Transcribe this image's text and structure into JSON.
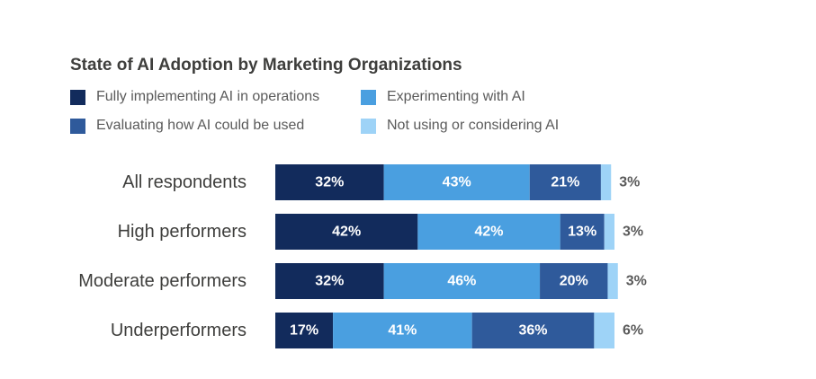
{
  "chart_data": {
    "type": "bar",
    "orientation": "horizontal",
    "stacked": true,
    "title": "State of AI Adoption by Marketing Organizations",
    "xlabel": "",
    "ylabel": "",
    "categories": [
      "All respondents",
      "High performers",
      "Moderate performers",
      "Underperformers"
    ],
    "series": [
      {
        "name": "Fully implementing AI in operations",
        "color": "#122b5c",
        "values": [
          32,
          42,
          32,
          17
        ]
      },
      {
        "name": "Experimenting with AI",
        "color": "#4a9fe0",
        "values": [
          43,
          42,
          46,
          41
        ]
      },
      {
        "name": "Evaluating how AI could be used",
        "color": "#2f5a9b",
        "values": [
          21,
          13,
          20,
          36
        ]
      },
      {
        "name": "Not using or considering AI",
        "color": "#9ed3f7",
        "values": [
          3,
          3,
          3,
          6
        ]
      }
    ],
    "value_suffix": "%",
    "legend_position": "top",
    "grid": false
  }
}
